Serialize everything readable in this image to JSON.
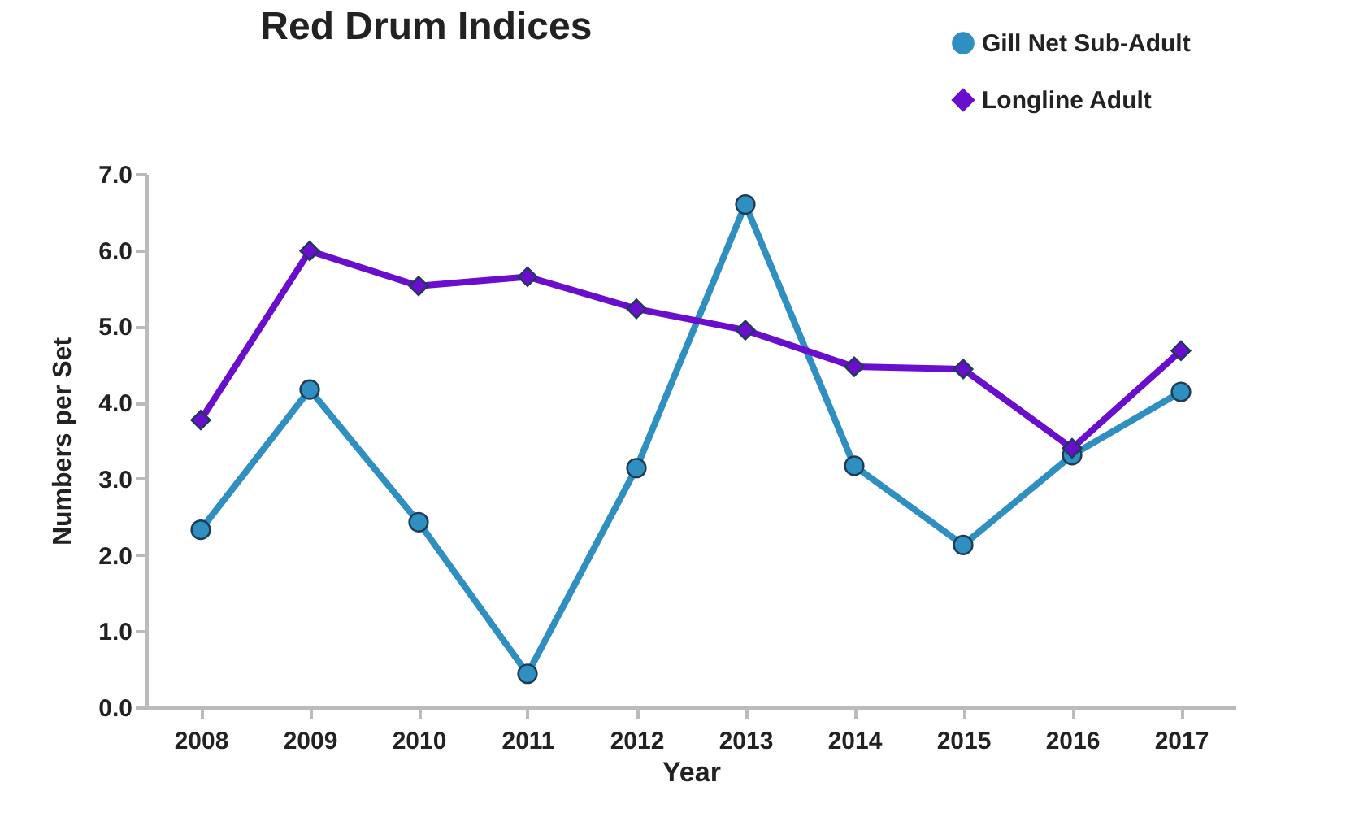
{
  "chart_data": {
    "type": "line",
    "title": "Red Drum Indices",
    "xlabel": "Year",
    "ylabel": "Numbers per Set",
    "categories": [
      "2008",
      "2009",
      "2010",
      "2011",
      "2012",
      "2013",
      "2014",
      "2015",
      "2016",
      "2017"
    ],
    "series": [
      {
        "name": "Gill Net Sub-Adult",
        "color": "#2e8fc0",
        "marker": "circle",
        "values": [
          2.33,
          4.17,
          2.43,
          0.44,
          3.14,
          6.6,
          3.17,
          2.13,
          3.31,
          4.14
        ]
      },
      {
        "name": "Longline Adult",
        "color": "#6a0dcc",
        "marker": "diamond",
        "values": [
          3.77,
          5.99,
          5.53,
          5.65,
          5.23,
          4.95,
          4.47,
          4.44,
          3.4,
          4.68
        ]
      }
    ],
    "ylim": [
      0,
      7
    ],
    "yticks": [
      {
        "value": 0,
        "label": "0.0"
      },
      {
        "value": 1,
        "label": "1.0"
      },
      {
        "value": 2,
        "label": "2.0"
      },
      {
        "value": 3,
        "label": "3.0"
      },
      {
        "value": 4,
        "label": "4.0"
      },
      {
        "value": 5,
        "label": "5.0"
      },
      {
        "value": 6,
        "label": "6.0"
      },
      {
        "value": 7,
        "label": "7.0"
      }
    ],
    "grid": false,
    "legend": "top right",
    "line_style": "solid"
  }
}
